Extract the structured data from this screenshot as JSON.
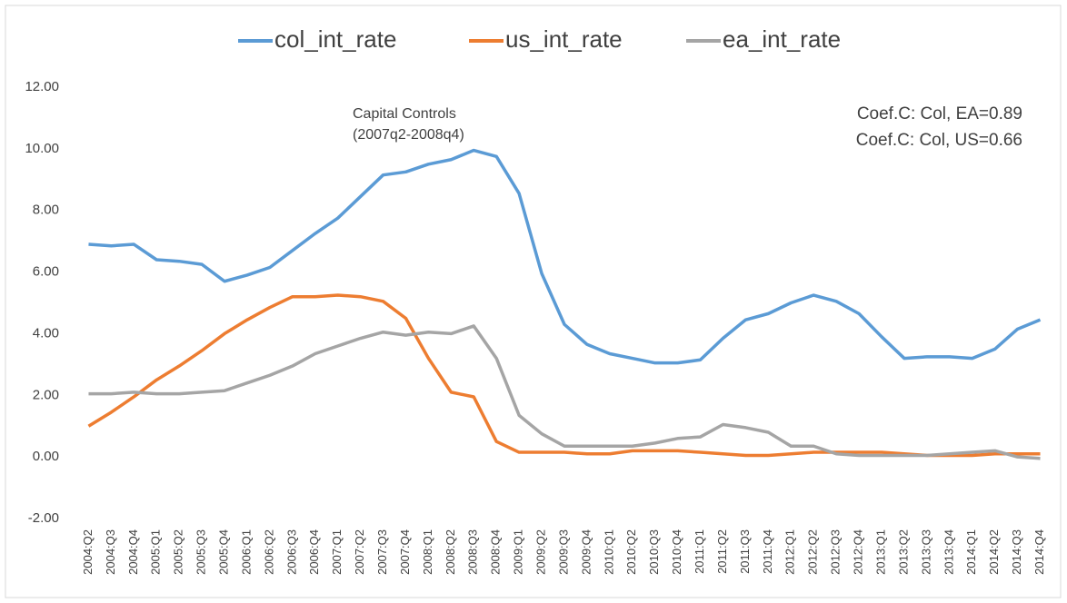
{
  "chart_data": {
    "type": "line",
    "categories": [
      "2004:Q2",
      "2004:Q3",
      "2004:Q4",
      "2005:Q1",
      "2005:Q2",
      "2005:Q3",
      "2005:Q4",
      "2006:Q1",
      "2006:Q2",
      "2006:Q3",
      "2006:Q4",
      "2007:Q1",
      "2007:Q2",
      "2007:Q3",
      "2007:Q4",
      "2008:Q1",
      "2008:Q2",
      "2008:Q3",
      "2008:Q4",
      "2009:Q1",
      "2009:Q2",
      "2009:Q3",
      "2009:Q4",
      "2010:Q1",
      "2010:Q2",
      "2010:Q3",
      "2010:Q4",
      "2011:Q1",
      "2011:Q2",
      "2011:Q3",
      "2011:Q4",
      "2012:Q1",
      "2012:Q2",
      "2012:Q3",
      "2012:Q4",
      "2013:Q1",
      "2013:Q2",
      "2013:Q3",
      "2013:Q4",
      "2014:Q1",
      "2014:Q2",
      "2014:Q3",
      "2014:Q4"
    ],
    "series": [
      {
        "name": "col_int_rate",
        "color": "#5b9bd5",
        "values": [
          6.9,
          6.85,
          6.9,
          6.4,
          6.35,
          6.25,
          5.7,
          5.9,
          6.15,
          6.7,
          7.25,
          7.75,
          8.45,
          9.15,
          9.25,
          9.5,
          9.65,
          9.95,
          9.75,
          8.55,
          5.95,
          4.3,
          3.65,
          3.35,
          3.2,
          3.05,
          3.05,
          3.15,
          3.85,
          4.45,
          4.65,
          5.0,
          5.25,
          5.05,
          4.65,
          3.9,
          3.2,
          3.25,
          3.25,
          3.2,
          3.5,
          4.15,
          4.45
        ]
      },
      {
        "name": "us_int_rate",
        "color": "#ed7d31",
        "values": [
          1.0,
          1.45,
          1.95,
          2.5,
          2.95,
          3.45,
          4.0,
          4.45,
          4.85,
          5.2,
          5.2,
          5.25,
          5.2,
          5.05,
          4.5,
          3.2,
          2.1,
          1.95,
          0.5,
          0.15,
          0.15,
          0.15,
          0.1,
          0.1,
          0.2,
          0.2,
          0.2,
          0.15,
          0.1,
          0.05,
          0.05,
          0.1,
          0.15,
          0.15,
          0.15,
          0.15,
          0.1,
          0.05,
          0.05,
          0.05,
          0.1,
          0.1,
          0.1
        ]
      },
      {
        "name": "ea_int_rate",
        "color": "#a5a5a5",
        "values": [
          2.05,
          2.05,
          2.1,
          2.05,
          2.05,
          2.1,
          2.15,
          2.4,
          2.65,
          2.95,
          3.35,
          3.6,
          3.85,
          4.05,
          3.95,
          4.05,
          4.0,
          4.25,
          3.2,
          1.35,
          0.75,
          0.35,
          0.35,
          0.35,
          0.35,
          0.45,
          0.6,
          0.65,
          1.05,
          0.95,
          0.8,
          0.35,
          0.35,
          0.1,
          0.05,
          0.05,
          0.05,
          0.05,
          0.1,
          0.15,
          0.2,
          0.0,
          -0.05
        ]
      }
    ],
    "ylim": [
      -2,
      12
    ],
    "yticks": [
      {
        "value": -2,
        "label": "-2.00"
      },
      {
        "value": 0,
        "label": "0.00"
      },
      {
        "value": 2,
        "label": "2.00"
      },
      {
        "value": 4,
        "label": "4.00"
      },
      {
        "value": 6,
        "label": "6.00"
      },
      {
        "value": 8,
        "label": "8.00"
      },
      {
        "value": 10,
        "label": "10.00"
      },
      {
        "value": 12,
        "label": "12.00"
      }
    ],
    "grid": false,
    "legend": "top",
    "annotations": [
      {
        "lines": [
          "Capital Controls",
          "(2007q2-2008q4)"
        ]
      },
      {
        "lines": [
          "Coef.C: Col, EA=0.89",
          "Coef.C: Col, US=0.66"
        ]
      }
    ]
  }
}
